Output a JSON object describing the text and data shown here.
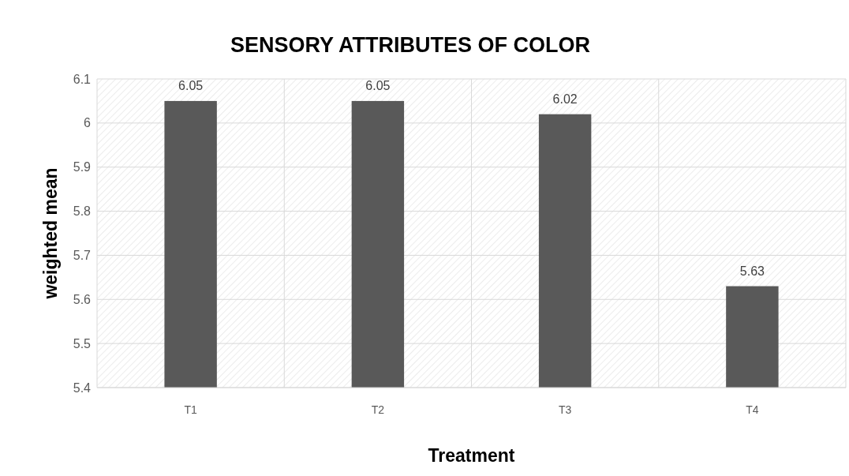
{
  "chart_data": {
    "type": "bar",
    "title": "SENSORY ATTRIBUTES OF COLOR",
    "xlabel": "Treatment",
    "ylabel": "weighted mean",
    "categories": [
      "T1",
      "T2",
      "T3",
      "T4"
    ],
    "values": [
      6.05,
      6.05,
      6.02,
      5.63
    ],
    "color": "#595959",
    "ylim": [
      5.4,
      6.1
    ],
    "yticks": [
      5.4,
      5.5,
      5.6,
      5.7,
      5.8,
      5.9,
      6,
      6.1
    ],
    "grid": true,
    "data_labels": true
  }
}
